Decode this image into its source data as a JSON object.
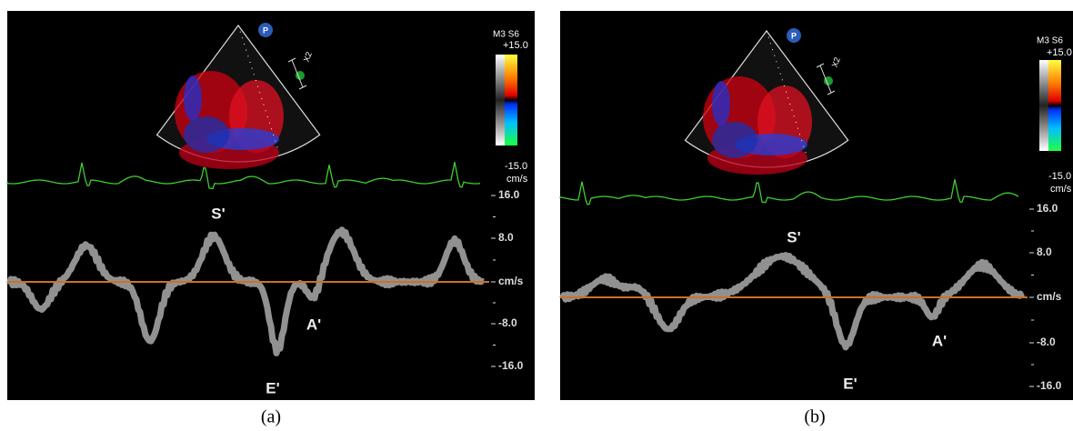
{
  "panels": [
    {
      "caption": "(a)",
      "probe_icon": "P",
      "zoom_label": "X2",
      "color_scale": {
        "mode": "M3 S6",
        "top": "+15.0",
        "bottom": "-15.0",
        "unit": "cm/s"
      },
      "velocity_scale": [
        "16.0",
        "8.0",
        "cm/s",
        "-8.0",
        "-16.0"
      ],
      "annotations": [
        "S'",
        "A'",
        "E'"
      ]
    },
    {
      "caption": "(b)",
      "probe_icon": "P",
      "zoom_label": "X2",
      "color_scale": {
        "mode": "M3 S6",
        "top": "+15.0",
        "bottom": "-15.0",
        "unit": "cm/s"
      },
      "velocity_scale": [
        "16.0",
        "8.0",
        "cm/s",
        "-8.0",
        "-16.0"
      ],
      "annotations": [
        "S'",
        "A'",
        "E'"
      ]
    }
  ]
}
